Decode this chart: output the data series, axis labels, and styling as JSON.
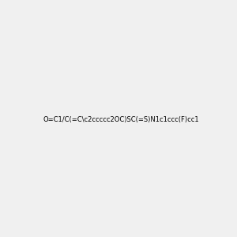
{
  "smiles": "O=C1/C(=C\\c2ccccc2OC)SC(=S)N1c1ccc(F)cc1",
  "image_size": 300,
  "background_color": "#f0f0f0",
  "title": ""
}
